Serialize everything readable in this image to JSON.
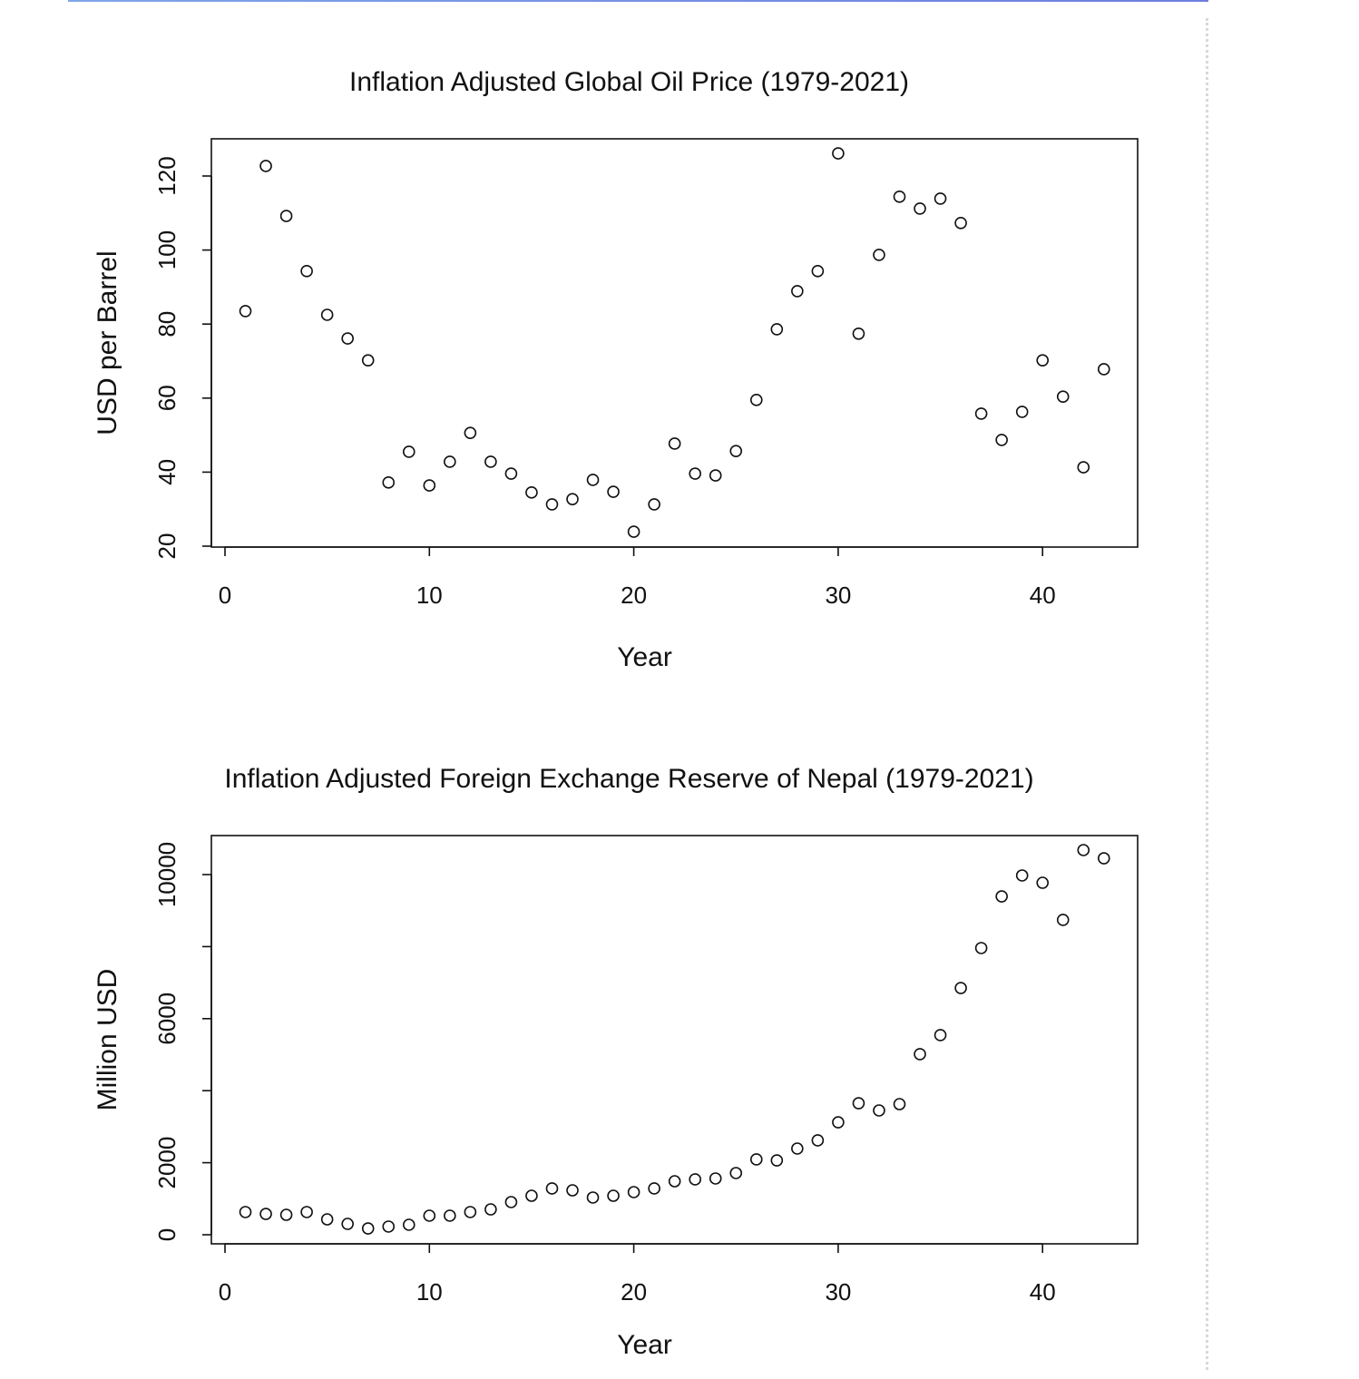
{
  "chart_data": [
    {
      "type": "scatter",
      "title": "Inflation Adjusted Global Oil Price (1979-2021)",
      "xlabel": "Year",
      "ylabel": "USD per Barrel",
      "xlim": [
        0,
        45
      ],
      "ylim": [
        20,
        130
      ],
      "xticks": [
        0,
        10,
        20,
        30,
        40
      ],
      "yticks": [
        20,
        40,
        60,
        80,
        100,
        120
      ],
      "ytick_labels": [
        "20",
        "40",
        "60",
        "80",
        "100",
        "120"
      ],
      "grid": false,
      "x": [
        1,
        2,
        3,
        4,
        5,
        6,
        7,
        8,
        9,
        10,
        11,
        12,
        13,
        14,
        15,
        16,
        17,
        18,
        19,
        20,
        21,
        22,
        23,
        24,
        25,
        26,
        27,
        28,
        29,
        30,
        31,
        32,
        33,
        34,
        35,
        36,
        37,
        38,
        39,
        40,
        41,
        42,
        43
      ],
      "y": [
        83.5,
        122.7,
        109.2,
        94.3,
        82.5,
        76.1,
        70.2,
        37.2,
        45.5,
        36.4,
        42.8,
        50.6,
        42.8,
        39.6,
        34.5,
        31.3,
        32.7,
        37.9,
        34.7,
        23.9,
        31.3,
        47.7,
        39.6,
        39.1,
        45.7,
        59.5,
        78.6,
        88.9,
        94.3,
        126.1,
        77.4,
        98.7,
        114.4,
        111.2,
        113.9,
        107.3,
        55.8,
        48.7,
        56.3,
        70.2,
        60.4,
        41.3,
        67.8
      ]
    },
    {
      "type": "scatter",
      "title": "Inflation Adjusted Foreign Exchange Reserve of Nepal (1979-2021)",
      "xlabel": "Year",
      "ylabel": "Million USD",
      "xlim": [
        0,
        45
      ],
      "ylim": [
        0,
        11000
      ],
      "xticks": [
        0,
        10,
        20,
        30,
        40
      ],
      "yticks": [
        0,
        2000,
        4000,
        6000,
        8000,
        10000
      ],
      "ytick_labels": [
        "0",
        "2000",
        "",
        "6000",
        "",
        "10000"
      ],
      "grid": false,
      "x": [
        1,
        2,
        3,
        4,
        5,
        6,
        7,
        8,
        9,
        10,
        11,
        12,
        13,
        14,
        15,
        16,
        17,
        18,
        19,
        20,
        21,
        22,
        23,
        24,
        25,
        26,
        27,
        28,
        29,
        30,
        31,
        32,
        33,
        34,
        35,
        36,
        37,
        38,
        39,
        40,
        41,
        42,
        43
      ],
      "y": [
        630,
        579,
        554,
        630,
        428,
        302,
        176,
        227,
        277,
        529,
        529,
        630,
        705,
        907,
        1083,
        1285,
        1234,
        1033,
        1083,
        1184,
        1285,
        1486,
        1537,
        1562,
        1713,
        2091,
        2065,
        2393,
        2620,
        3123,
        3652,
        3451,
        3627,
        5013,
        5542,
        6851,
        7960,
        9395,
        9975,
        9773,
        8741,
        10680,
        10453
      ]
    }
  ]
}
